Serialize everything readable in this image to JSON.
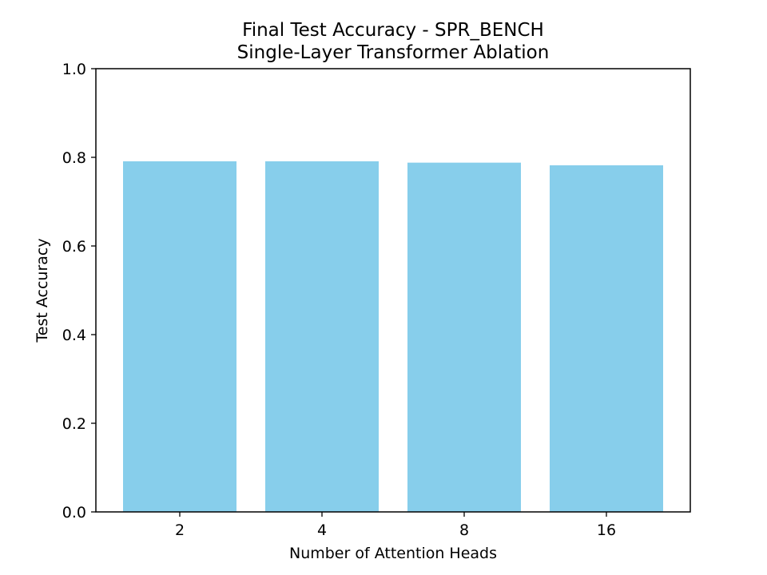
{
  "chart_data": {
    "type": "bar",
    "title": "Final Test Accuracy - SPR_BENCH",
    "subtitle": "Single-Layer Transformer Ablation",
    "xlabel": "Number of Attention Heads",
    "ylabel": "Test Accuracy",
    "categories": [
      "2",
      "4",
      "8",
      "16"
    ],
    "values": [
      0.791,
      0.791,
      0.788,
      0.782
    ],
    "ylim": [
      0,
      1.0
    ],
    "yticks": [
      "0.0",
      "0.2",
      "0.4",
      "0.6",
      "0.8",
      "1.0"
    ],
    "bar_color": "#87ceeb",
    "grid": false,
    "legend": "none"
  }
}
